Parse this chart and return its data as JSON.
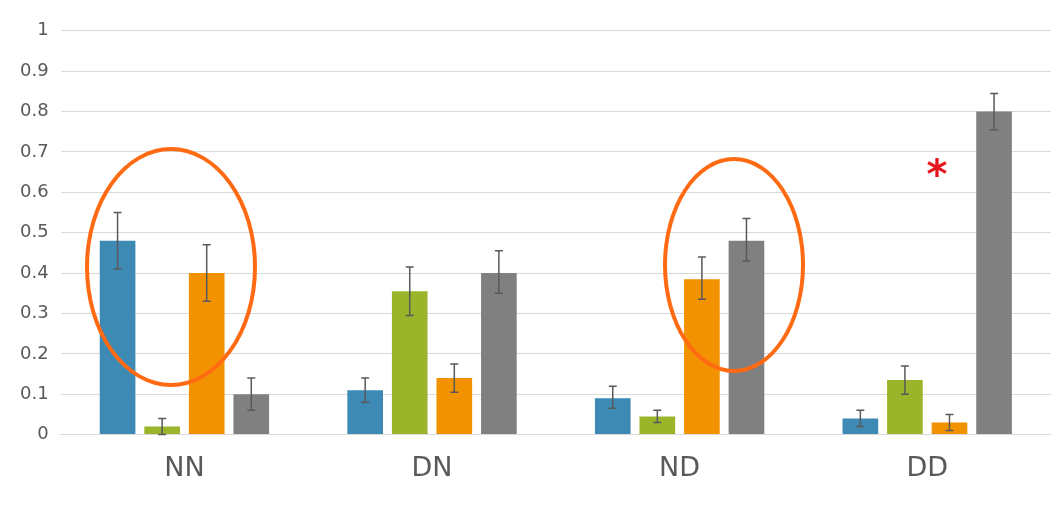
{
  "chart_data": {
    "type": "bar",
    "categories": [
      "NN",
      "DN",
      "ND",
      "DD"
    ],
    "series": [
      {
        "color": "#3d8ab5",
        "values": [
          0.48,
          0.11,
          0.09,
          0.04
        ],
        "errors": [
          [
            0.41,
            0.55
          ],
          [
            0.08,
            0.14
          ],
          [
            0.065,
            0.12
          ],
          [
            0.02,
            0.06
          ]
        ]
      },
      {
        "color": "#9ab52a",
        "values": [
          0.02,
          0.355,
          0.045,
          0.135
        ],
        "errors": [
          [
            0.0,
            0.04
          ],
          [
            0.295,
            0.415
          ],
          [
            0.03,
            0.06
          ],
          [
            0.1,
            0.17
          ]
        ]
      },
      {
        "color": "#f39200",
        "values": [
          0.4,
          0.14,
          0.385,
          0.03
        ],
        "errors": [
          [
            0.33,
            0.47
          ],
          [
            0.105,
            0.175
          ],
          [
            0.335,
            0.44
          ],
          [
            0.01,
            0.05
          ]
        ]
      },
      {
        "color": "#808080",
        "values": [
          0.1,
          0.4,
          0.48,
          0.8
        ],
        "errors": [
          [
            0.06,
            0.14
          ],
          [
            0.35,
            0.455
          ],
          [
            0.43,
            0.535
          ],
          [
            0.755,
            0.845
          ]
        ]
      }
    ],
    "ylim": [
      0,
      1
    ],
    "yticks": [
      0,
      0.1,
      0.2,
      0.3,
      0.4,
      0.5,
      0.6,
      0.7,
      0.8,
      0.9,
      1
    ],
    "grid": "y",
    "legend": false,
    "annotations": [
      "*"
    ]
  }
}
